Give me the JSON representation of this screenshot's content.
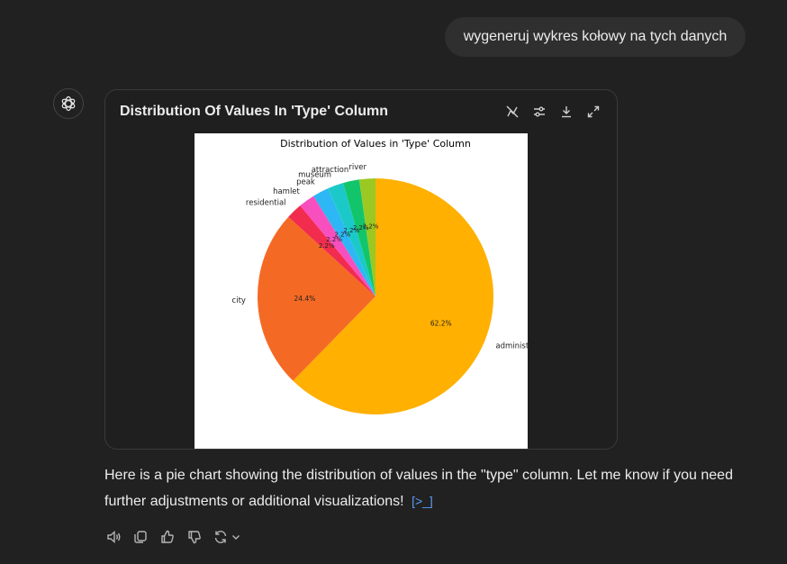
{
  "user_message": "wygeneruj wykres kołowy na tych danych",
  "card": {
    "title": "Distribution Of Values In 'Type' Column",
    "tools": [
      "chart-interactive-icon",
      "sliders-icon",
      "download-icon",
      "expand-icon"
    ]
  },
  "response": {
    "text": "Here is a pie chart showing the distribution of values in the \"type\" column. Let me know if you need further adjustments or additional visualizations!",
    "citation": "[>_]"
  },
  "actions": [
    "speaker-icon",
    "copy-icon",
    "thumbs-up-icon",
    "thumbs-down-icon",
    "regenerate-icon",
    "chevron-down-icon"
  ],
  "colors": {
    "background": "#212121",
    "bubble": "#2f2f2f",
    "card_border": "#3a3a3a",
    "link": "#5b9cf6"
  },
  "chart_data": {
    "type": "pie",
    "title": "Distribution of Values in 'Type' Column",
    "slices": [
      {
        "label": "administrative",
        "value": 62.2,
        "pct_label": "62.2%",
        "color": "#FFB000"
      },
      {
        "label": "city",
        "value": 24.4,
        "pct_label": "24.4%",
        "color": "#F46A25"
      },
      {
        "label": "residential",
        "value": 2.2,
        "pct_label": "2.2%",
        "color": "#F22C4E"
      },
      {
        "label": "hamlet",
        "value": 2.2,
        "pct_label": "2.2%",
        "color": "#F84FBF"
      },
      {
        "label": "peak",
        "value": 2.2,
        "pct_label": "2.2%",
        "color": "#2DB8F5"
      },
      {
        "label": "museum",
        "value": 2.2,
        "pct_label": "2.2%",
        "color": "#1CC9C9"
      },
      {
        "label": "attraction",
        "value": 2.2,
        "pct_label": "2.2%",
        "color": "#12C56A"
      },
      {
        "label": "river",
        "value": 2.2,
        "pct_label": "2.2%",
        "color": "#9BC823"
      }
    ]
  }
}
